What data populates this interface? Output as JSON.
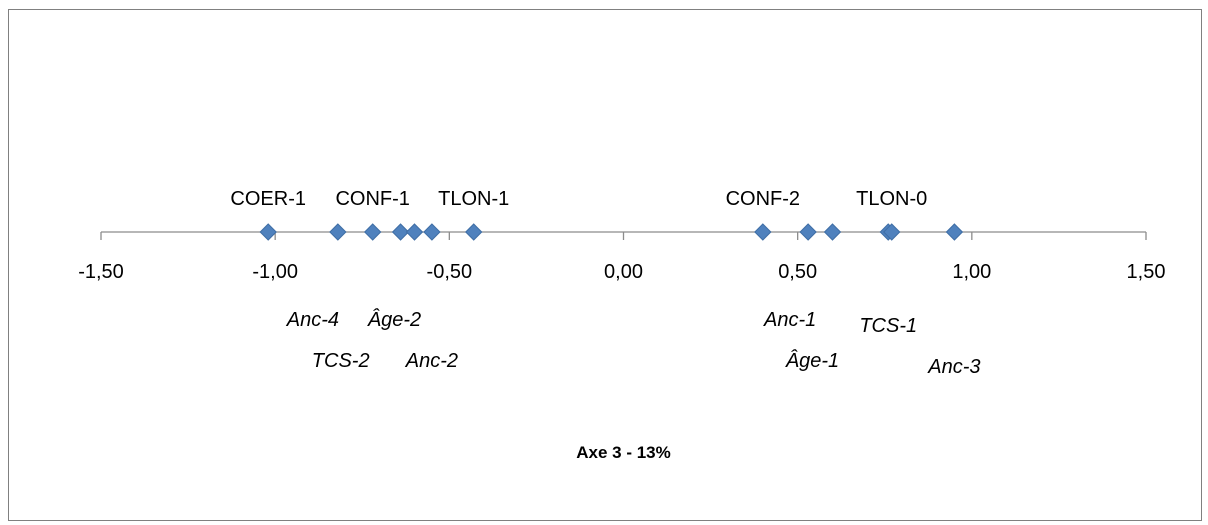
{
  "chart_data": {
    "type": "scatter",
    "title": "",
    "xlabel": "Axe 3 - 13%",
    "ylabel": "",
    "xlim": [
      -1.5,
      1.5
    ],
    "xticks": [
      -1.5,
      -1.0,
      -0.5,
      0.0,
      0.5,
      1.0,
      1.5
    ],
    "xtick_labels": [
      "-1,50",
      "-1,00",
      "-0,50",
      "0,00",
      "0,50",
      "1,00",
      "1,50"
    ],
    "grid": false,
    "legend": "none",
    "marker": "diamond",
    "marker_color": "#4F81BD",
    "x": [
      -1.02,
      -0.82,
      -0.72,
      -0.64,
      -0.6,
      -0.55,
      -0.43,
      0.4,
      0.53,
      0.6,
      0.76,
      0.77,
      0.95
    ],
    "labels": [
      {
        "text": "COER-1",
        "x": -1.02,
        "position": "above",
        "italic": false
      },
      {
        "text": "CONF-1",
        "x": -0.72,
        "position": "above",
        "italic": false
      },
      {
        "text": "TLON-1",
        "x": -0.43,
        "position": "above",
        "italic": false
      },
      {
        "text": "CONF-2",
        "x": 0.4,
        "position": "above",
        "italic": false
      },
      {
        "text": "TLON-0",
        "x": 0.77,
        "position": "above",
        "italic": false
      },
      {
        "text": "Anc-4",
        "x": -0.82,
        "position": "below",
        "italic": true
      },
      {
        "text": "TCS-2",
        "x": -0.72,
        "position": "below",
        "italic": true
      },
      {
        "text": "Âge-2",
        "x": -0.6,
        "position": "below",
        "italic": true
      },
      {
        "text": "Anc-2",
        "x": -0.55,
        "position": "below",
        "italic": true
      },
      {
        "text": "Anc-1",
        "x": 0.53,
        "position": "below",
        "italic": true
      },
      {
        "text": "Âge-1",
        "x": 0.6,
        "position": "below",
        "italic": true
      },
      {
        "text": "TCS-1",
        "x": 0.76,
        "position": "below",
        "italic": true
      },
      {
        "text": "Anc-3",
        "x": 0.95,
        "position": "below",
        "italic": true
      }
    ]
  }
}
